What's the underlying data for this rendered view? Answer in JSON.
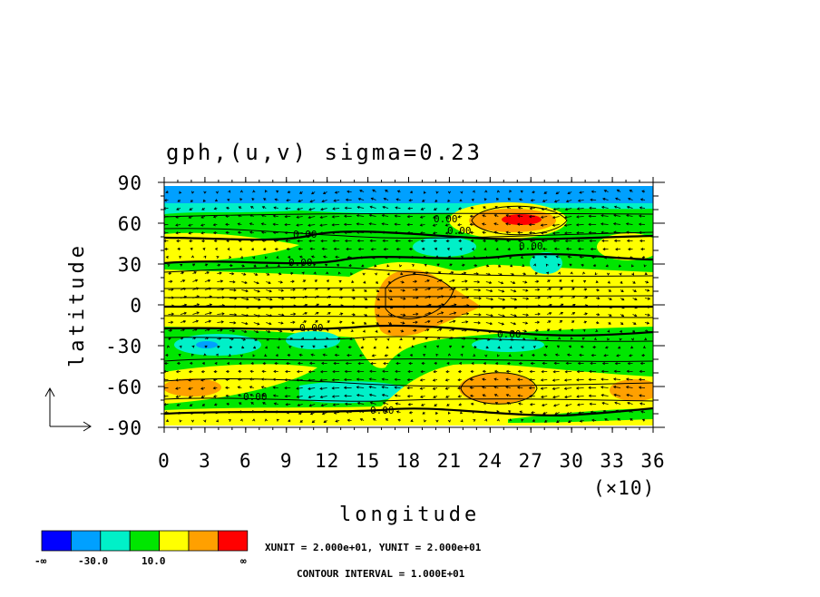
{
  "chart_data": {
    "type": "contour",
    "title": "gph,(u,v) sigma=0.23",
    "xlabel": "longitude",
    "ylabel": "latitude",
    "x_ticks": [
      "0",
      "3",
      "6",
      "9",
      "12",
      "15",
      "18",
      "21",
      "24",
      "27",
      "30",
      "33",
      "36"
    ],
    "x_multiplier": "(×10)",
    "y_ticks": [
      "90",
      "60",
      "30",
      "0",
      "-30",
      "-60",
      "-90"
    ],
    "xlim": [
      0,
      360
    ],
    "ylim": [
      -90,
      90
    ],
    "contour_labels": [
      "0.00",
      "0.00",
      "0.00",
      "0.00",
      "0.00",
      "0.00",
      "0.00",
      "0.00",
      "0.00"
    ],
    "colorbar": {
      "colors": [
        "#0000ff",
        "#00a0ff",
        "#00f0c8",
        "#00e600",
        "#ffff00",
        "#ffa000",
        "#ff0000"
      ],
      "labels": [
        "-∞",
        "-30.0",
        "10.0",
        "∞"
      ]
    },
    "xunit_text": "XUNIT = 2.000e+01, YUNIT = 2.000e+01",
    "contour_interval_text": "CONTOUR INTERVAL = 1.000E+01",
    "colors": {
      "ocean_blue": "#00a0ff",
      "cyan": "#00f0c8",
      "green": "#00e600",
      "yellow": "#ffff00",
      "orange": "#ffa000",
      "red": "#ff0000"
    }
  }
}
